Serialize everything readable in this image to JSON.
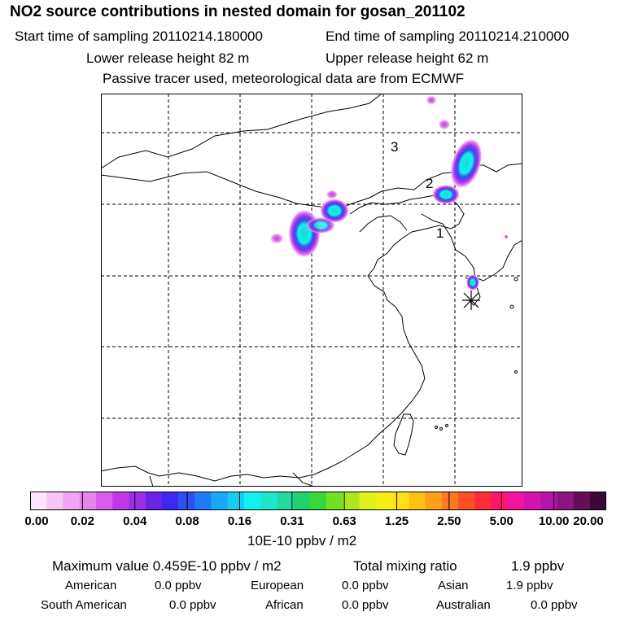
{
  "header": {
    "title": "NO2 source contributions in nested domain for gosan_201102",
    "start_label": "Start time of sampling 20110214.180000",
    "end_label": "End time of sampling 20110214.210000",
    "lower_label": "Lower release height   82 m",
    "upper_label": "Upper release height   62 m",
    "tracer_note": "Passive tracer used, meteorological data are from ECMWF"
  },
  "map": {
    "region_labels": [
      "1",
      "2",
      "3"
    ],
    "receptor_marker": "asterisk-icon"
  },
  "colorbar": {
    "colors": [
      "#fde6fd",
      "#f7c6f7",
      "#f0a6f0",
      "#e585ee",
      "#d95deb",
      "#c237e8",
      "#9c2fe6",
      "#6b24e6",
      "#3f27f0",
      "#2f4ff5",
      "#1f7cf5",
      "#18a8f5",
      "#14cdf5",
      "#14f0f0",
      "#1ee6c8",
      "#24d9a0",
      "#1fd26e",
      "#38d83a",
      "#74e024",
      "#aee81c",
      "#dff01a",
      "#f7f018",
      "#ffe014",
      "#ffc014",
      "#ff9e18",
      "#ff7a1f",
      "#ff4f26",
      "#ff2c3a",
      "#ff1470",
      "#f0149e",
      "#d414b0",
      "#b414a8",
      "#8c147e",
      "#640e5a",
      "#3c0838"
    ],
    "ticks": [
      "0.00",
      "0.02",
      "0.04",
      "0.08",
      "0.16",
      "0.31",
      "0.63",
      "1.25",
      "2.50",
      "5.00",
      "10.00",
      "20.00"
    ],
    "unit": "10E-10 ppbv / m2"
  },
  "stats": {
    "max_label": "Maximum value  0.459E-10 ppbv / m2",
    "total_label": "Total mixing ratio",
    "total_value": "1.9 ppbv",
    "regions": [
      {
        "name": "American",
        "value": "0.0 ppbv"
      },
      {
        "name": "European",
        "value": "0.0 ppbv"
      },
      {
        "name": "Asian",
        "value": "1.9 ppbv"
      },
      {
        "name": "South American",
        "value": "0.0 ppbv"
      },
      {
        "name": "African",
        "value": "0.0 ppbv"
      },
      {
        "name": "Australian",
        "value": "0.0 ppbv"
      }
    ]
  }
}
